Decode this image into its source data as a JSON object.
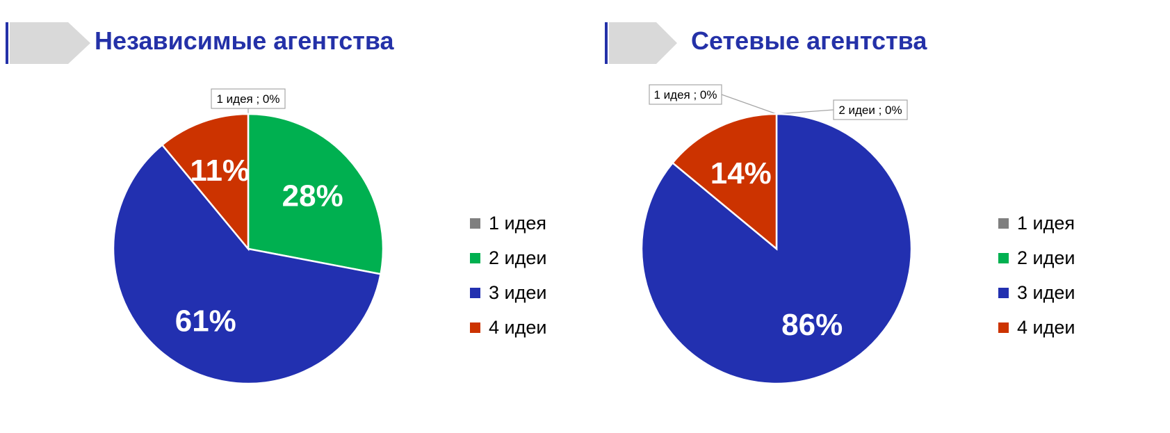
{
  "colors": {
    "one_idea": "#7f7f7f",
    "two_ideas": "#00b050",
    "three_ideas": "#2230b0",
    "four_ideas": "#cc3300",
    "title": "#2431a8",
    "header_tab": "#d9d9d9"
  },
  "chart_data": [
    {
      "type": "pie",
      "title": "Независимые агентства",
      "categories": [
        "1 идея",
        "2 идеи",
        "3 идеи",
        "4 идеи"
      ],
      "values": [
        0,
        28,
        61,
        11
      ],
      "unit": "%",
      "data_labels": [
        "1 идея ; 0%",
        "28%",
        "61%",
        "11%"
      ],
      "legend": "right"
    },
    {
      "type": "pie",
      "title": "Сетевые агентства",
      "categories": [
        "1 идея",
        "2 идеи",
        "3 идеи",
        "4 идеи"
      ],
      "values": [
        0,
        0,
        86,
        14
      ],
      "unit": "%",
      "data_labels": [
        "1 идея ; 0%",
        "2 идеи ; 0%",
        "86%",
        "14%"
      ],
      "legend": "right"
    }
  ]
}
